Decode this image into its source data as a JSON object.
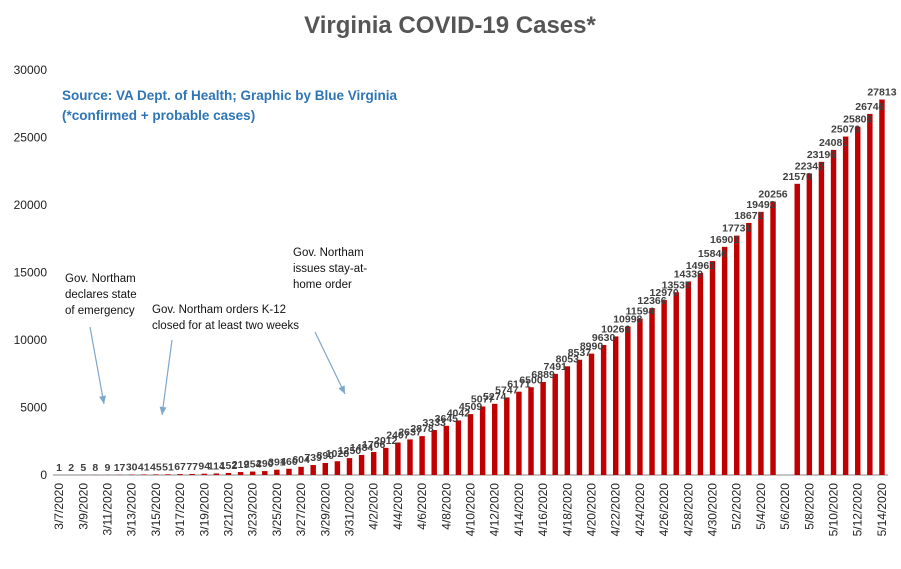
{
  "source_line": "Source: VA Dept. of Health; Graphic by Blue Virginia",
  "note_line": "(*confirmed + probable cases)",
  "colors": {
    "bar": "#C00000",
    "title": "#555555",
    "source": "#2E75B6",
    "arrow": "#7FA7C9"
  },
  "annotations": [
    {
      "lines": [
        "Gov. Northam",
        "declares state",
        "of emergency"
      ],
      "date": "3/12/2020"
    },
    {
      "lines": [
        "Gov. Northam orders K-12",
        "closed  for at least two weeks"
      ],
      "date": "3/15/2020"
    },
    {
      "lines": [
        "Gov. Northam",
        "issues stay-at-",
        "home order"
      ],
      "date": "3/30/2020"
    }
  ],
  "chart_data": {
    "type": "bar",
    "title": "Virginia COVID-19 Cases*",
    "xlabel": "",
    "ylabel": "",
    "ylim": [
      0,
      30000
    ],
    "yticks": [
      0,
      5000,
      10000,
      15000,
      20000,
      25000,
      30000
    ],
    "grid": false,
    "legend": "none",
    "x_tick_labels": [
      "3/7/2020",
      "3/9/2020",
      "3/11/2020",
      "3/13/2020",
      "3/15/2020",
      "3/17/2020",
      "3/19/2020",
      "3/21/2020",
      "3/23/2020",
      "3/25/2020",
      "3/27/2020",
      "3/29/2020",
      "3/31/2020",
      "4/2/2020",
      "4/4/2020",
      "4/6/2020",
      "4/8/2020",
      "4/10/2020",
      "4/12/2020",
      "4/14/2020",
      "4/16/2020",
      "4/18/2020",
      "4/20/2020",
      "4/22/2020",
      "4/24/2020",
      "4/26/2020",
      "4/28/2020",
      "4/30/2020",
      "5/2/2020",
      "5/4/2020",
      "5/6/2020",
      "5/8/2020",
      "5/10/2020",
      "5/12/2020",
      "5/14/2020"
    ],
    "categories": [
      "3/7/2020",
      "3/8/2020",
      "3/9/2020",
      "3/10/2020",
      "3/11/2020",
      "3/12/2020",
      "3/13/2020",
      "3/14/2020",
      "3/15/2020",
      "3/16/2020",
      "3/17/2020",
      "3/18/2020",
      "3/19/2020",
      "3/20/2020",
      "3/21/2020",
      "3/22/2020",
      "3/23/2020",
      "3/24/2020",
      "3/25/2020",
      "3/26/2020",
      "3/27/2020",
      "3/28/2020",
      "3/29/2020",
      "3/30/2020",
      "3/31/2020",
      "4/1/2020",
      "4/2/2020",
      "4/3/2020",
      "4/4/2020",
      "4/5/2020",
      "4/6/2020",
      "4/7/2020",
      "4/8/2020",
      "4/9/2020",
      "4/10/2020",
      "4/11/2020",
      "4/12/2020",
      "4/13/2020",
      "4/14/2020",
      "4/15/2020",
      "4/16/2020",
      "4/17/2020",
      "4/18/2020",
      "4/19/2020",
      "4/20/2020",
      "4/21/2020",
      "4/22/2020",
      "4/23/2020",
      "4/24/2020",
      "4/25/2020",
      "4/26/2020",
      "4/27/2020",
      "4/28/2020",
      "4/29/2020",
      "4/30/2020",
      "5/1/2020",
      "5/2/2020",
      "5/3/2020",
      "5/4/2020",
      "5/5/2020",
      "5/6/2020",
      "5/7/2020",
      "5/8/2020",
      "5/9/2020",
      "5/10/2020",
      "5/11/2020",
      "5/12/2020",
      "5/13/2020",
      "5/14/2020"
    ],
    "values": [
      1,
      2,
      5,
      8,
      9,
      17,
      30,
      41,
      45,
      51,
      67,
      77,
      94,
      114,
      152,
      219,
      254,
      290,
      391,
      460,
      604,
      739,
      890,
      1020,
      1250,
      1484,
      1706,
      2012,
      2407,
      2637,
      2878,
      3333,
      3645,
      4042,
      4509,
      5077,
      5274,
      5747,
      6171,
      6500,
      6889,
      7491,
      8053,
      8537,
      8990,
      9630,
      10266,
      10998,
      11594,
      12366,
      12970,
      13535,
      14339,
      14961,
      15846,
      16901,
      17731,
      18671,
      19492,
      20256,
      null,
      21570,
      22342,
      23196,
      24081,
      25070,
      25800,
      26746,
      27813
    ],
    "data_labels": [
      "1",
      "2",
      "5",
      "8",
      "9",
      "17",
      "30",
      "41",
      "45",
      "51",
      "67",
      "77",
      "94",
      "114",
      "152",
      "219",
      "254",
      "290",
      "391",
      "460",
      "604",
      "739",
      "890",
      "1020",
      "1250",
      "1484",
      "1706",
      "2012",
      "2407",
      "2637",
      "2878",
      "3333",
      "3645",
      "4042",
      "4509",
      "5077",
      "5274",
      "5747",
      "6171",
      "6500",
      "6889",
      "7491",
      "8053",
      "8537",
      "8990",
      "9630",
      "10266",
      "10998",
      "11594",
      "12366",
      "12970",
      "13535",
      "14339",
      "14961",
      "15846",
      "16901",
      "17731",
      "18671",
      "19492",
      "20256",
      "",
      "21570",
      "22342",
      "23196",
      "24081",
      "25070",
      "25800",
      "26746",
      "27813"
    ]
  }
}
